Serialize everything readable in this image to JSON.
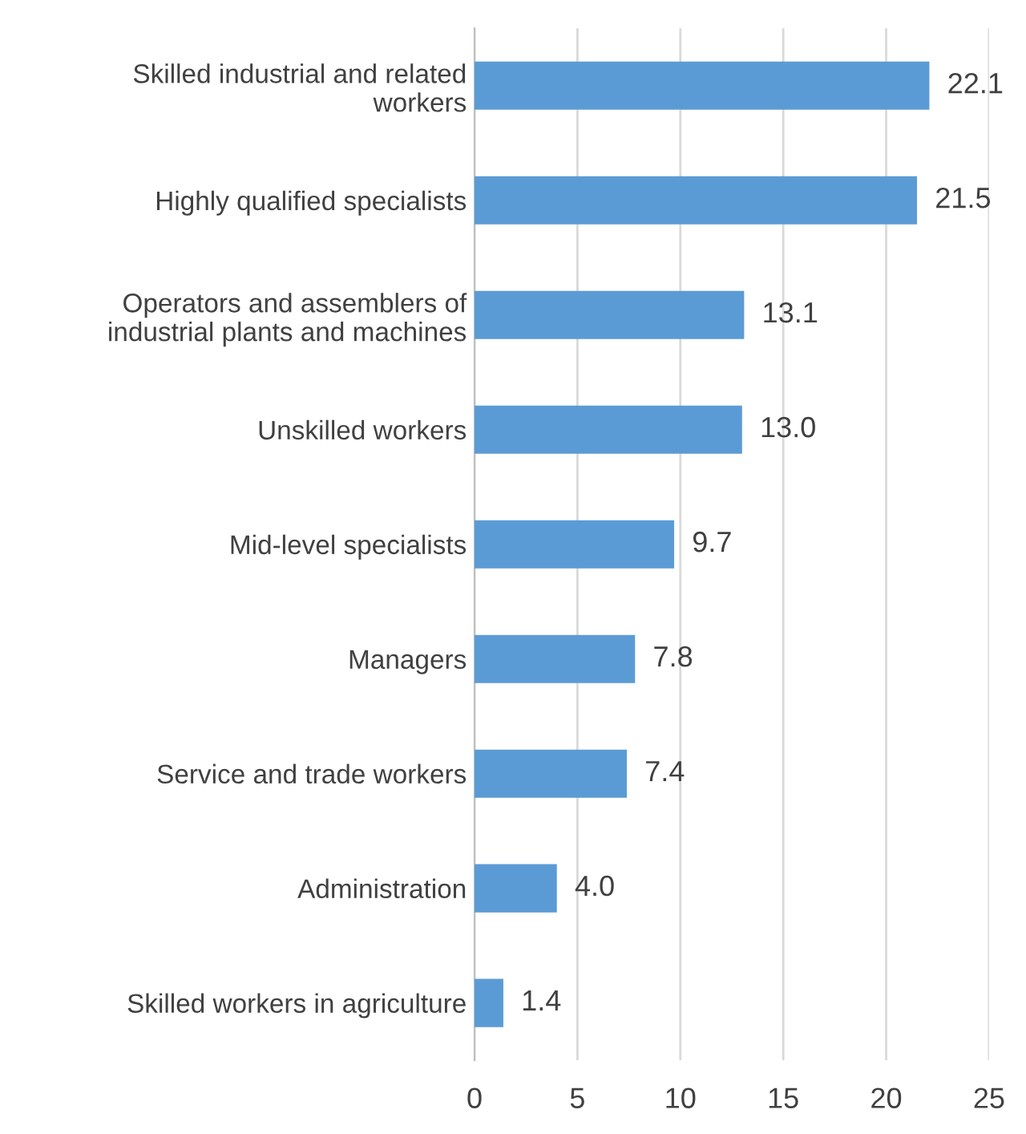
{
  "chart_data": {
    "type": "bar",
    "orientation": "horizontal",
    "categories": [
      "Skilled industrial and related\nworkers",
      "Highly qualified specialists",
      "Operators and assemblers of\nindustrial plants and machines",
      "Unskilled workers",
      "Mid-level specialists",
      "Managers",
      "Service and trade workers",
      "Administration",
      "Skilled workers in agriculture"
    ],
    "values": [
      22.1,
      21.5,
      13.1,
      13.0,
      9.7,
      7.8,
      7.4,
      4.0,
      1.4
    ],
    "value_labels": [
      "22.1",
      "21.5",
      "13.1",
      "13.0",
      "9.7",
      "7.8",
      "7.4",
      "4.0",
      "1.4"
    ],
    "color": "#5b9bd5",
    "xlim": [
      0,
      25
    ],
    "xticks": [
      0,
      5,
      10,
      15,
      20,
      25
    ],
    "grid": "x",
    "legend": false
  }
}
